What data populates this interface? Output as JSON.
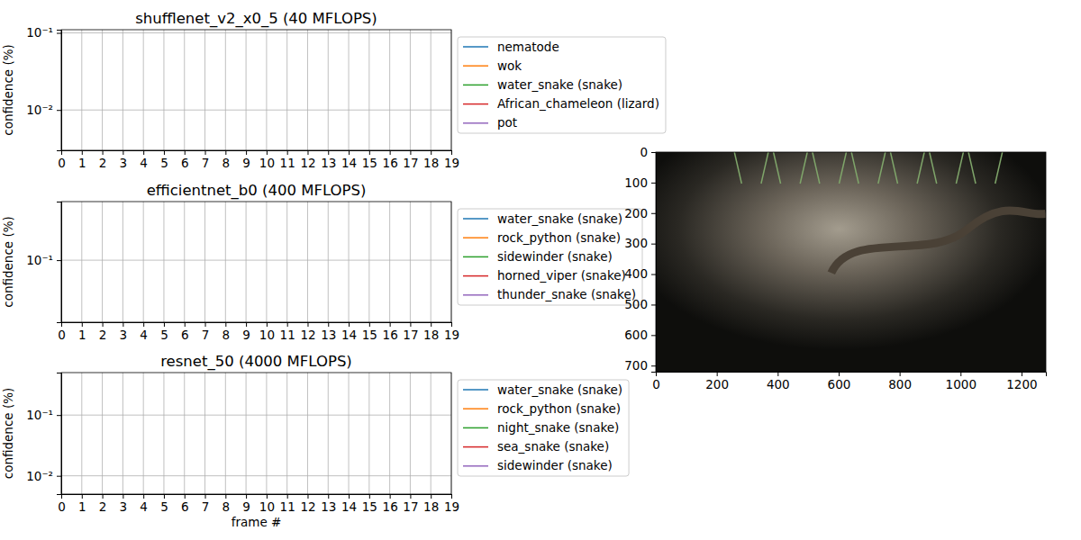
{
  "chart_data": [
    {
      "type": "line",
      "title": "shufflenet_v2_x0_5 (40 MFLOPS)",
      "y_label": "confidence (%)",
      "xlim": [
        0,
        19
      ],
      "xticks": [
        0,
        1,
        2,
        3,
        4,
        5,
        6,
        7,
        8,
        9,
        10,
        11,
        12,
        13,
        14,
        15,
        16,
        17,
        18,
        19
      ],
      "ylim": [
        0.003,
        0.11
      ],
      "yticks": [
        {
          "value": 0.01,
          "label": "10⁻²"
        },
        {
          "value": 0.1,
          "label": "10⁻¹"
        }
      ],
      "log": "y",
      "grid": true,
      "legend": "right",
      "series": [
        {
          "name": "nematode",
          "color": "#1f77b4",
          "values": []
        },
        {
          "name": "wok",
          "color": "#ff7f0e",
          "values": []
        },
        {
          "name": "water_snake (snake)",
          "color": "#2ca02c",
          "values": []
        },
        {
          "name": "African_chameleon (lizard)",
          "color": "#d62728",
          "values": []
        },
        {
          "name": "pot",
          "color": "#9467bd",
          "values": []
        }
      ]
    },
    {
      "type": "line",
      "title": "efficientnet_b0 (400 MFLOPS)",
      "y_label": "confidence (%)",
      "xlim": [
        0,
        19
      ],
      "xticks": [
        0,
        1,
        2,
        3,
        4,
        5,
        6,
        7,
        8,
        9,
        10,
        11,
        12,
        13,
        14,
        15,
        16,
        17,
        18,
        19
      ],
      "ylim": [
        0.015,
        0.6
      ],
      "yticks": [
        {
          "value": 0.1,
          "label": "10⁻¹"
        }
      ],
      "log": "y",
      "grid": true,
      "legend": "right",
      "series": [
        {
          "name": "water_snake (snake)",
          "color": "#1f77b4",
          "values": []
        },
        {
          "name": "rock_python (snake)",
          "color": "#ff7f0e",
          "values": []
        },
        {
          "name": "sidewinder (snake)",
          "color": "#2ca02c",
          "values": []
        },
        {
          "name": "horned_viper (snake)",
          "color": "#d62728",
          "values": []
        },
        {
          "name": "thunder_snake (snake)",
          "color": "#9467bd",
          "values": []
        }
      ]
    },
    {
      "type": "line",
      "title": "resnet_50 (4000 MFLOPS)",
      "y_label": "confidence (%)",
      "x_label": "frame #",
      "xlim": [
        0,
        19
      ],
      "xticks": [
        0,
        1,
        2,
        3,
        4,
        5,
        6,
        7,
        8,
        9,
        10,
        11,
        12,
        13,
        14,
        15,
        16,
        17,
        18,
        19
      ],
      "ylim": [
        0.005,
        0.5
      ],
      "yticks": [
        {
          "value": 0.01,
          "label": "10⁻²"
        },
        {
          "value": 0.1,
          "label": "10⁻¹"
        }
      ],
      "log": "y",
      "grid": true,
      "legend": "right",
      "series": [
        {
          "name": "water_snake (snake)",
          "color": "#1f77b4",
          "values": []
        },
        {
          "name": "rock_python (snake)",
          "color": "#ff7f0e",
          "values": []
        },
        {
          "name": "night_snake (snake)",
          "color": "#2ca02c",
          "values": []
        },
        {
          "name": "sea_snake (snake)",
          "color": "#d62728",
          "values": []
        },
        {
          "name": "sidewinder (snake)",
          "color": "#9467bd",
          "values": []
        }
      ]
    },
    {
      "type": "image",
      "xlim": [
        0,
        1280
      ],
      "xticks": [
        0,
        200,
        400,
        600,
        800,
        1000,
        1200
      ],
      "ylim": [
        720,
        0
      ],
      "yticks": [
        0,
        100,
        200,
        300,
        400,
        500,
        600,
        700
      ]
    }
  ]
}
